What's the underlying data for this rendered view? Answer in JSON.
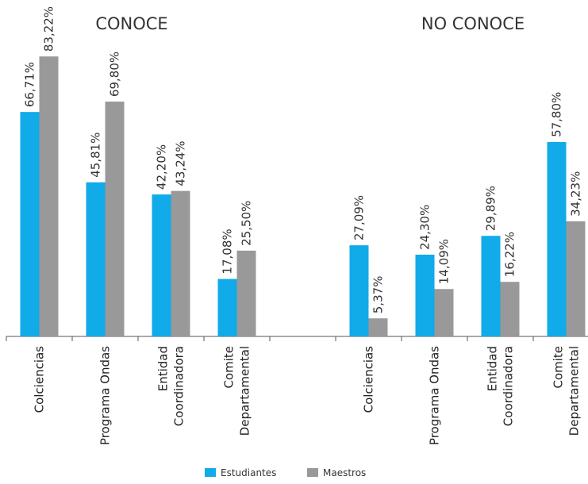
{
  "chart_data": {
    "type": "bar",
    "group_titles": [
      "CONOCE",
      "NO CONOCE"
    ],
    "categories": [
      [
        "Colciencias"
      ],
      [
        "Programa Ondas"
      ],
      [
        "Entidad",
        "Coordinadora"
      ],
      [
        "Comite",
        "Departamental"
      ],
      [],
      [
        "Colciencias"
      ],
      [
        "Programa Ondas"
      ],
      [
        "Entidad",
        "Coordinadora"
      ],
      [
        "Comite",
        "Departamental"
      ]
    ],
    "series": [
      {
        "name": "Estudiantes",
        "color": "#10ABE8",
        "values": [
          66.71,
          45.81,
          42.2,
          17.08,
          null,
          27.09,
          24.3,
          29.89,
          57.8
        ],
        "labels": [
          "66,71%",
          "45,81%",
          "42,20%",
          "17,08%",
          "",
          "27,09%",
          "24,30%",
          "29,89%",
          "57,80%"
        ]
      },
      {
        "name": "Maestros",
        "color": "#999999",
        "values": [
          83.22,
          69.8,
          43.24,
          25.5,
          null,
          5.37,
          14.09,
          16.22,
          34.23
        ],
        "labels": [
          "83,22%",
          "69,80%",
          "43,24%",
          "25,50%",
          "",
          "5,37%",
          "14,09%",
          "16,22%",
          "34,23%"
        ]
      }
    ],
    "ylim": [
      0,
      100
    ],
    "grid": false,
    "legend": "bottom-center"
  }
}
